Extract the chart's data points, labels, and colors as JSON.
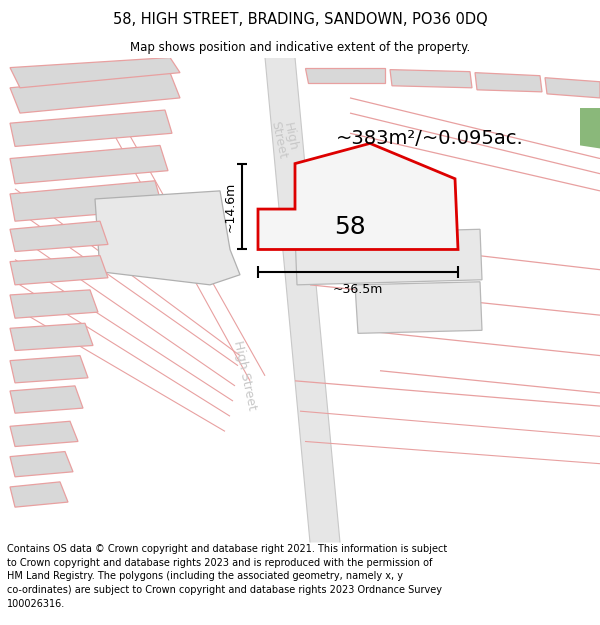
{
  "title": "58, HIGH STREET, BRADING, SANDOWN, PO36 0DQ",
  "subtitle": "Map shows position and indicative extent of the property.",
  "footer": "Contains OS data © Crown copyright and database right 2021. This information is subject to Crown copyright and database rights 2023 and is reproduced with the permission of HM Land Registry. The polygons (including the associated geometry, namely x, y co-ordinates) are subject to Crown copyright and database rights 2023 Ordnance Survey 100026316.",
  "area_label": "~383m²/~0.095ac.",
  "width_label": "~36.5m",
  "height_label": "~14.6m",
  "property_number": "58",
  "bg_color": "#ffffff",
  "red_color": "#dd0000",
  "pink_color": "#e8a0a0",
  "gray_fill": "#d8d8d8",
  "gray_fill2": "#e8e8e8",
  "road_fill": "#e6e6e6",
  "street_color": "#c8c8c8",
  "green_color": "#8ab87a",
  "figsize": [
    6.0,
    6.25
  ],
  "dpi": 100
}
